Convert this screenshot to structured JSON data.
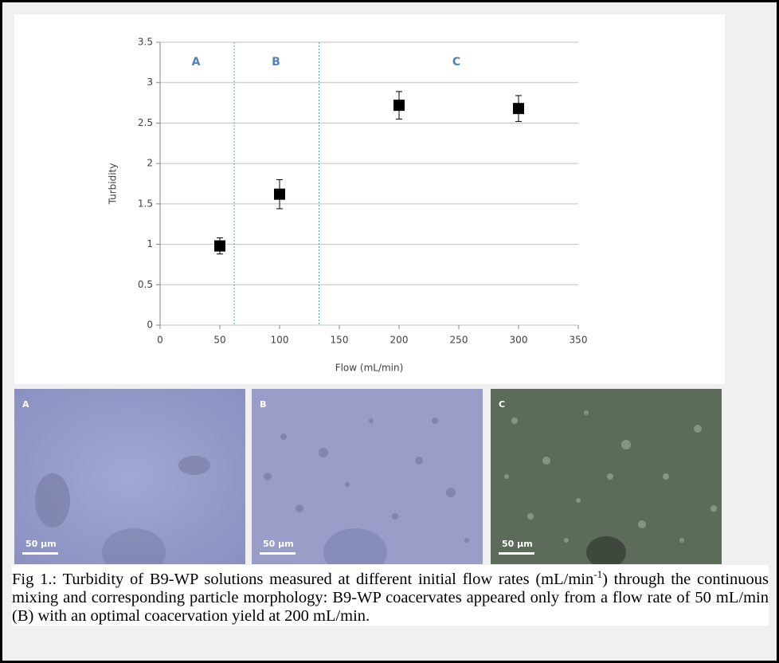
{
  "chart_data": {
    "type": "scatter",
    "xlabel": "Flow (mL/min)",
    "ylabel": "Turbidity",
    "x": [
      50,
      100,
      200,
      300
    ],
    "series": [
      {
        "color": "#000000",
        "values": [
          0.98,
          1.62,
          2.72,
          2.68
        ],
        "errors": [
          0.1,
          0.18,
          0.17,
          0.16
        ]
      }
    ],
    "xlim": [
      0,
      350
    ],
    "xticks": [
      0,
      50,
      100,
      150,
      200,
      250,
      300,
      350
    ],
    "ylim": [
      0,
      3.5
    ],
    "yticks": [
      0,
      0.5,
      1,
      1.5,
      2,
      2.5,
      3,
      3.5
    ],
    "grid": true,
    "dividers": [
      62,
      133
    ],
    "region_labels": [
      {
        "text": "A",
        "x": 30
      },
      {
        "text": "B",
        "x": 97
      },
      {
        "text": "C",
        "x": 248
      }
    ]
  },
  "panels": [
    {
      "label": "A",
      "scale": "50 µm"
    },
    {
      "label": "B",
      "scale": "50 µm"
    },
    {
      "label": "C",
      "scale": "50 µm"
    }
  ],
  "caption": {
    "before": "Fig 1.: Turbidity of B9-WP solutions measured at different initial flow rates (mL/min",
    "sup": "-1",
    "after": ") through the continuous mixing and corresponding particle morphology: B9-WP coacervates appeared only from a flow rate of 50 mL/min (B) with an optimal coacervation yield at 200 mL/min."
  }
}
